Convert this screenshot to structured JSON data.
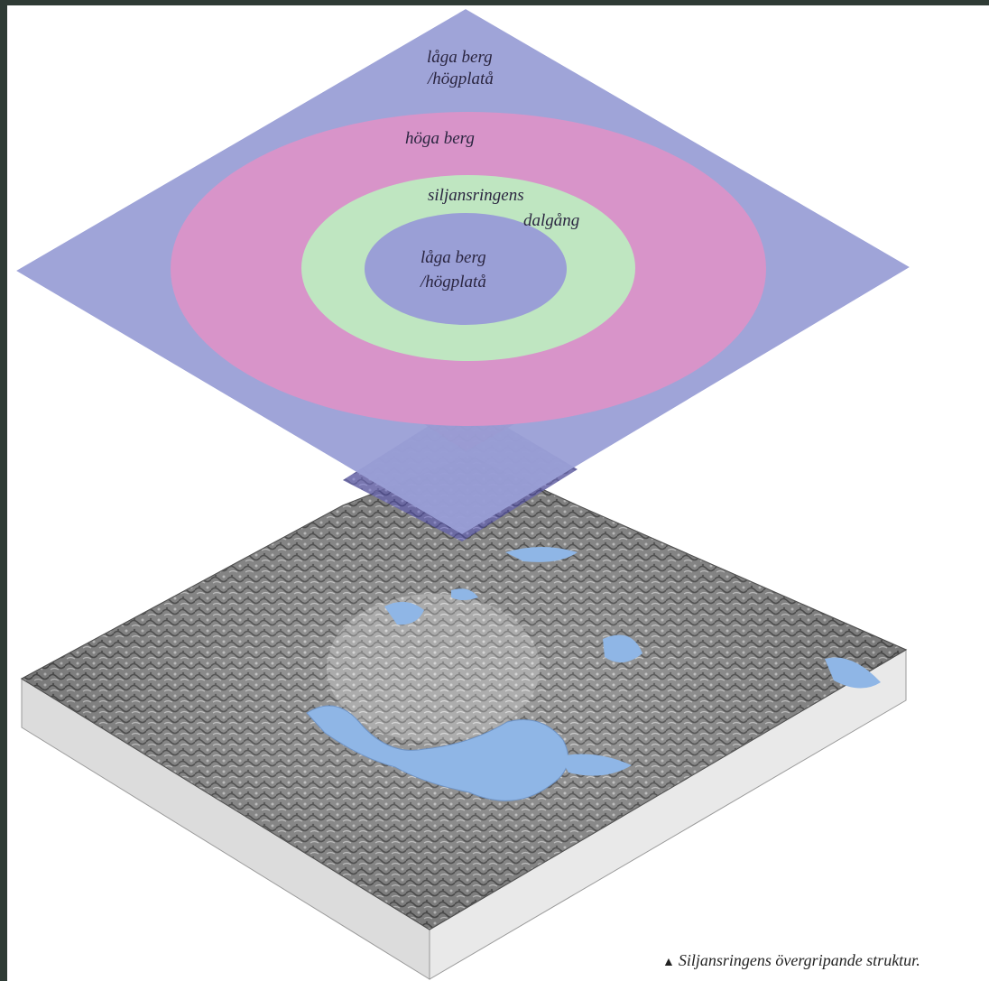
{
  "zones": {
    "outer_label_line1": "låga berg",
    "outer_label_line2": "/högplatå",
    "high_label": "höga berg",
    "valley_label_line1": "siljansringens",
    "valley_label_line2": "dalgång",
    "inner_label_line1": "låga berg",
    "inner_label_line2": "/högplatå"
  },
  "colors": {
    "low_plateau": "#9a9fd6",
    "high_mountains": "#d894c9",
    "valley": "#bfe6c1",
    "lake": "#8fb6e6",
    "terrain": "#8c8c8c",
    "block_side": "#e2e2e2"
  },
  "caption": {
    "marker": "▲",
    "text": "Siljansringens övergripande struktur."
  }
}
